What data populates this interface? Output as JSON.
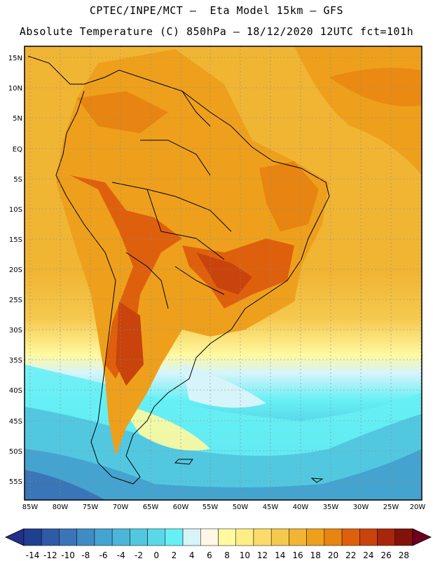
{
  "header": {
    "line1": "CPTEC/INPE/MCT –  Eta Model 15km – GFS",
    "line2": "Absolute Temperature (C) 850hPa – 18/12/2020 12UTC fct=101h"
  },
  "map": {
    "lat_labels": [
      "15N",
      "10N",
      "5N",
      "EQ",
      "5S",
      "10S",
      "15S",
      "20S",
      "25S",
      "30S",
      "35S",
      "40S",
      "45S",
      "50S",
      "55S"
    ],
    "lon_labels": [
      "85W",
      "80W",
      "75W",
      "70W",
      "65W",
      "60W",
      "55W",
      "50W",
      "45W",
      "40W",
      "35W",
      "30W",
      "25W",
      "20W"
    ]
  },
  "colorbar": {
    "labels": [
      "-14",
      "-12",
      "-10",
      "-8",
      "-6",
      "-4",
      "-2",
      "0",
      "2",
      "4",
      "6",
      "8",
      "10",
      "12",
      "14",
      "16",
      "18",
      "20",
      "22",
      "24",
      "26",
      "28"
    ],
    "colors": [
      "#1f3f8f",
      "#2e5aa6",
      "#3a75b8",
      "#3f8cc4",
      "#45a3cf",
      "#4bb6d8",
      "#52c8e0",
      "#5ad8e8",
      "#66f0f5",
      "#d6f4fa",
      "#fff8e6",
      "#fff9a0",
      "#ffee85",
      "#fbdc6a",
      "#f5c94e",
      "#f1b534",
      "#eea01c",
      "#e88411",
      "#df600c",
      "#c9430c",
      "#a8260c",
      "#821309"
    ],
    "left_cap": "#22308a",
    "right_cap": "#6e0020"
  }
}
